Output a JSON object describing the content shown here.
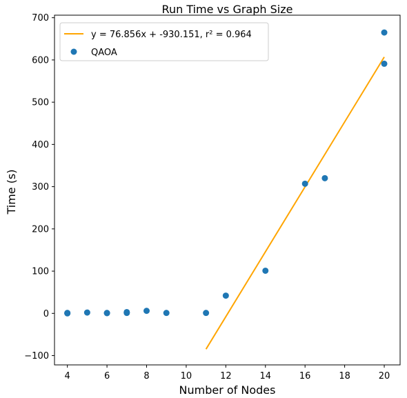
{
  "chart_data": {
    "type": "scatter",
    "title": "Run Time vs Graph Size",
    "xlabel": "Number of Nodes",
    "ylabel": "Time (s)",
    "xlim": [
      3.35,
      20.8
    ],
    "ylim": [
      -122,
      706
    ],
    "xticks": [
      4,
      6,
      8,
      10,
      12,
      14,
      16,
      18,
      20
    ],
    "yticks": [
      -100,
      0,
      100,
      200,
      300,
      400,
      500,
      600,
      700
    ],
    "grid": false,
    "legend_position": "top-left",
    "series": [
      {
        "name": "QAOA",
        "kind": "scatter",
        "color": "#1f77b4",
        "points": [
          {
            "x": 4,
            "y": 0
          },
          {
            "x": 4,
            "y": 0.5
          },
          {
            "x": 4,
            "y": 1
          },
          {
            "x": 5,
            "y": 2
          },
          {
            "x": 6,
            "y": 0.5
          },
          {
            "x": 6,
            "y": 1
          },
          {
            "x": 7,
            "y": 1
          },
          {
            "x": 7,
            "y": 3
          },
          {
            "x": 8,
            "y": 6
          },
          {
            "x": 9,
            "y": 1
          },
          {
            "x": 11,
            "y": 1
          },
          {
            "x": 12,
            "y": 42
          },
          {
            "x": 14,
            "y": 101
          },
          {
            "x": 16,
            "y": 307
          },
          {
            "x": 17,
            "y": 320
          },
          {
            "x": 20,
            "y": 665
          },
          {
            "x": 20,
            "y": 591
          }
        ]
      },
      {
        "name": "y = 76.856x + -930.151, r² = 0.964",
        "kind": "line",
        "color": "#ffa500",
        "slope": 76.856,
        "intercept": -930.151,
        "x_range": [
          11,
          20
        ]
      }
    ],
    "legend": [
      {
        "label": "y = 76.856x + -930.151, r² = 0.964",
        "marker": "line",
        "color": "#ffa500"
      },
      {
        "label": "QAOA",
        "marker": "dot",
        "color": "#1f77b4"
      }
    ]
  }
}
